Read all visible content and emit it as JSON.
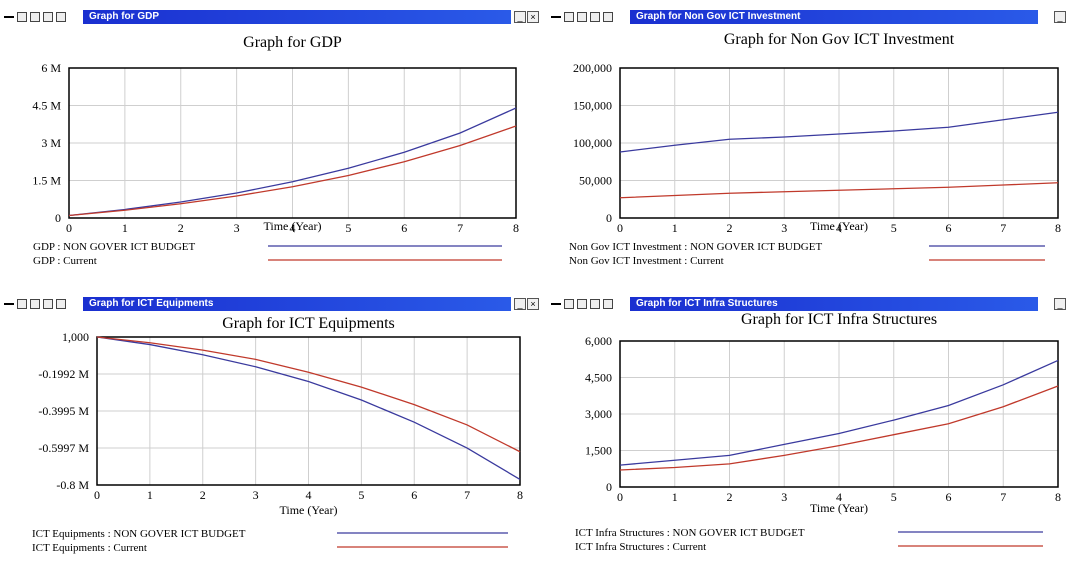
{
  "windows": [
    {
      "id": "gdp",
      "window_title": "Graph for GDP",
      "chart_data": {
        "type": "line",
        "title": "Graph for GDP",
        "xlabel": "Time (Year)",
        "ylabel": "",
        "x": [
          0,
          1,
          2,
          3,
          4,
          5,
          6,
          7,
          8
        ],
        "xlim": [
          0,
          8
        ],
        "ylim": [
          0,
          6000000
        ],
        "yticks": [
          0,
          1500000,
          3000000,
          4500000,
          6000000
        ],
        "ytick_labels": [
          "0",
          "1.5 M",
          "3 M",
          "4.5 M",
          "6 M"
        ],
        "xtick_labels": [
          "0",
          "1",
          "2",
          "3",
          "4",
          "5",
          "6",
          "7",
          "8"
        ],
        "grid": true,
        "series": [
          {
            "name": "GDP : NON GOVER ICT BUDGET",
            "color": "#3a3a9e",
            "values": [
              100000,
              340000,
              640000,
              1000000,
              1450000,
              1990000,
              2630000,
              3400000,
              4400000
            ]
          },
          {
            "name": "GDP : Current",
            "color": "#c0392b",
            "values": [
              100000,
              310000,
              570000,
              880000,
              1250000,
              1700000,
              2250000,
              2900000,
              3680000
            ]
          }
        ]
      }
    },
    {
      "id": "nongov",
      "window_title": "Graph for Non Gov ICT Investment",
      "chart_data": {
        "type": "line",
        "title": "Graph for Non Gov ICT Investment",
        "xlabel": "Time (Year)",
        "ylabel": "",
        "x": [
          0,
          1,
          2,
          3,
          4,
          5,
          6,
          7,
          8
        ],
        "xlim": [
          0,
          8
        ],
        "ylim": [
          0,
          200000
        ],
        "yticks": [
          0,
          50000,
          100000,
          150000,
          200000
        ],
        "ytick_labels": [
          "0",
          "50,000",
          "100,000",
          "150,000",
          "200,000"
        ],
        "xtick_labels": [
          "0",
          "1",
          "2",
          "3",
          "4",
          "5",
          "6",
          "7",
          "8"
        ],
        "grid": true,
        "series": [
          {
            "name": "Non Gov ICT Investment : NON GOVER ICT BUDGET",
            "color": "#3a3a9e",
            "values": [
              88000,
              97000,
              105000,
              108000,
              112000,
              116000,
              121000,
              131000,
              141000
            ]
          },
          {
            "name": "Non Gov ICT Investment : Current",
            "color": "#c0392b",
            "values": [
              27000,
              30000,
              33000,
              35000,
              37000,
              39000,
              41000,
              44000,
              47000
            ]
          }
        ]
      }
    },
    {
      "id": "equip",
      "window_title": "Graph for ICT Equipments",
      "chart_data": {
        "type": "line",
        "title": "Graph for ICT Equipments",
        "xlabel": "Time (Year)",
        "ylabel": "",
        "x": [
          0,
          1,
          2,
          3,
          4,
          5,
          6,
          7,
          8
        ],
        "xlim": [
          0,
          8
        ],
        "ylim": [
          -800000,
          1000
        ],
        "yticks": [
          -800000,
          -599700,
          -399500,
          -199200,
          1000
        ],
        "ytick_labels": [
          "-0.8 M",
          "-0.5997 M",
          "-0.3995 M",
          "-0.1992 M",
          "1,000"
        ],
        "xtick_labels": [
          "0",
          "1",
          "2",
          "3",
          "4",
          "5",
          "6",
          "7",
          "8"
        ],
        "grid": true,
        "series": [
          {
            "name": "ICT Equipments : NON GOVER ICT BUDGET",
            "color": "#3a3a9e",
            "values": [
              1000,
              -40000,
              -95000,
              -160000,
              -240000,
              -340000,
              -460000,
              -600000,
              -770000
            ]
          },
          {
            "name": "ICT Equipments : Current",
            "color": "#c0392b",
            "values": [
              1000,
              -30000,
              -70000,
              -120000,
              -190000,
              -270000,
              -365000,
              -475000,
              -620000
            ]
          }
        ]
      }
    },
    {
      "id": "infra",
      "window_title": "Graph for ICT Infra Structures",
      "chart_data": {
        "type": "line",
        "title": "Graph for ICT Infra Structures",
        "xlabel": "Time (Year)",
        "ylabel": "",
        "x": [
          0,
          1,
          2,
          3,
          4,
          5,
          6,
          7,
          8
        ],
        "xlim": [
          0,
          8
        ],
        "ylim": [
          0,
          6000
        ],
        "yticks": [
          0,
          1500,
          3000,
          4500,
          6000
        ],
        "ytick_labels": [
          "0",
          "1,500",
          "3,000",
          "4,500",
          "6,000"
        ],
        "xtick_labels": [
          "0",
          "1",
          "2",
          "3",
          "4",
          "5",
          "6",
          "7",
          "8"
        ],
        "grid": true,
        "series": [
          {
            "name": "ICT Infra Structures : NON GOVER ICT BUDGET",
            "color": "#3a3a9e",
            "values": [
              900,
              1100,
              1300,
              1750,
              2200,
              2750,
              3350,
              4200,
              5200
            ]
          },
          {
            "name": "ICT Infra Structures : Current",
            "color": "#c0392b",
            "values": [
              700,
              800,
              950,
              1300,
              1700,
              2150,
              2600,
              3300,
              4150
            ]
          }
        ]
      }
    }
  ],
  "window_buttons": {
    "minimize": "_",
    "close": "×"
  }
}
